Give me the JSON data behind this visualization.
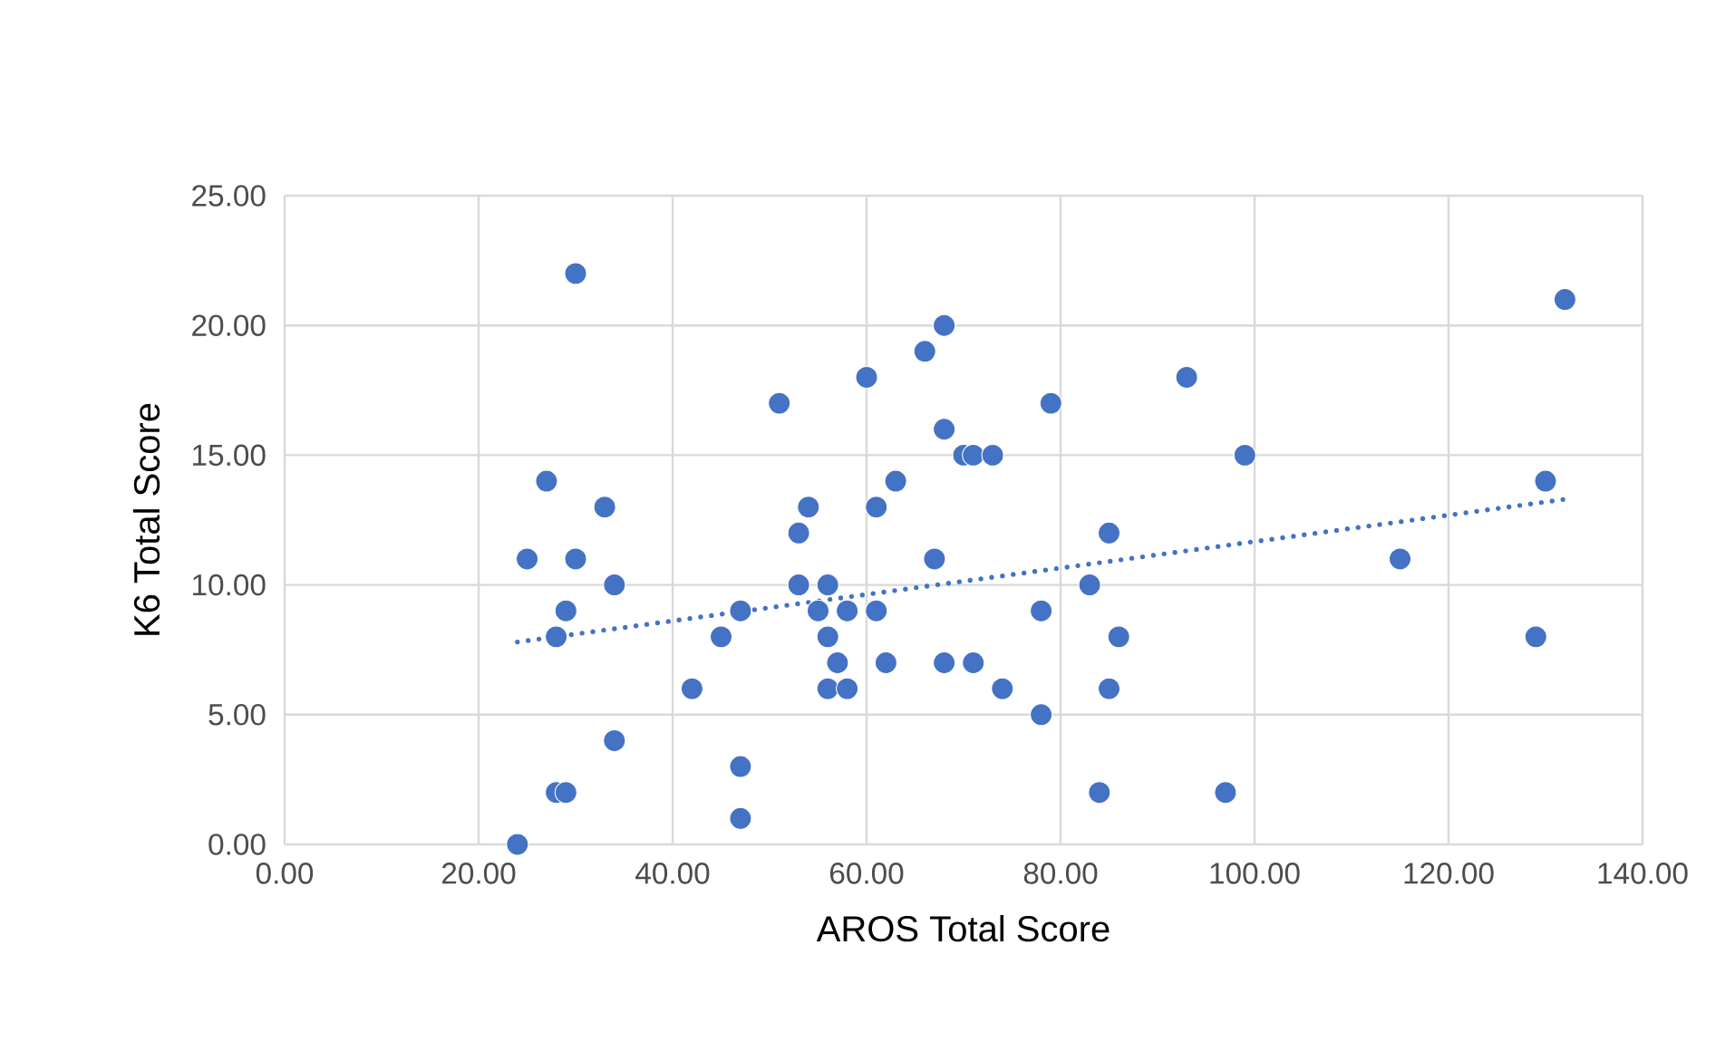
{
  "chart_data": {
    "type": "scatter",
    "xlabel": "AROS Total Score",
    "ylabel": "K6 Total Score",
    "xlim": [
      0,
      140
    ],
    "ylim": [
      0,
      25
    ],
    "xticks": [
      {
        "value": 0,
        "label": "0.00"
      },
      {
        "value": 20,
        "label": "20.00"
      },
      {
        "value": 40,
        "label": "40.00"
      },
      {
        "value": 60,
        "label": "60.00"
      },
      {
        "value": 80,
        "label": "80.00"
      },
      {
        "value": 100,
        "label": "100.00"
      },
      {
        "value": 120,
        "label": "120.00"
      },
      {
        "value": 140,
        "label": "140.00"
      }
    ],
    "yticks": [
      {
        "value": 0,
        "label": "0.00"
      },
      {
        "value": 5,
        "label": "5.00"
      },
      {
        "value": 10,
        "label": "10.00"
      },
      {
        "value": 15,
        "label": "15.00"
      },
      {
        "value": 20,
        "label": "20.00"
      },
      {
        "value": 25,
        "label": "25.00"
      }
    ],
    "grid": true,
    "series": [
      {
        "color": "#4472c4",
        "marker": "circle",
        "x": [
          24,
          25,
          27,
          28,
          28,
          29,
          29,
          30,
          30,
          33,
          34,
          34,
          42,
          45,
          47,
          47,
          47,
          51,
          53,
          53,
          54,
          55,
          56,
          56,
          56,
          57,
          58,
          58,
          60,
          61,
          61,
          62,
          63,
          66,
          67,
          68,
          68,
          68,
          70,
          71,
          71,
          73,
          74,
          78,
          78,
          79,
          83,
          84,
          85,
          85,
          86,
          93,
          97,
          99,
          115,
          129,
          130,
          132
        ],
        "values": [
          0,
          11,
          14,
          8,
          2,
          2,
          9,
          22,
          11,
          13,
          10,
          4,
          6,
          8,
          9,
          3,
          1,
          17,
          12,
          10,
          13,
          9,
          10,
          8,
          6,
          7,
          9,
          6,
          18,
          13,
          9,
          7,
          14,
          19,
          11,
          20,
          16,
          7,
          15,
          15,
          7,
          15,
          6,
          9,
          5,
          17,
          10,
          2,
          12,
          6,
          8,
          18,
          2,
          15,
          11,
          8,
          14,
          21
        ]
      },
      {
        "type": "line",
        "color": "#4472c4",
        "line_style": "dotted",
        "marker": "none",
        "x": [
          24,
          132
        ],
        "values": [
          7.8,
          13.3
        ]
      }
    ]
  }
}
